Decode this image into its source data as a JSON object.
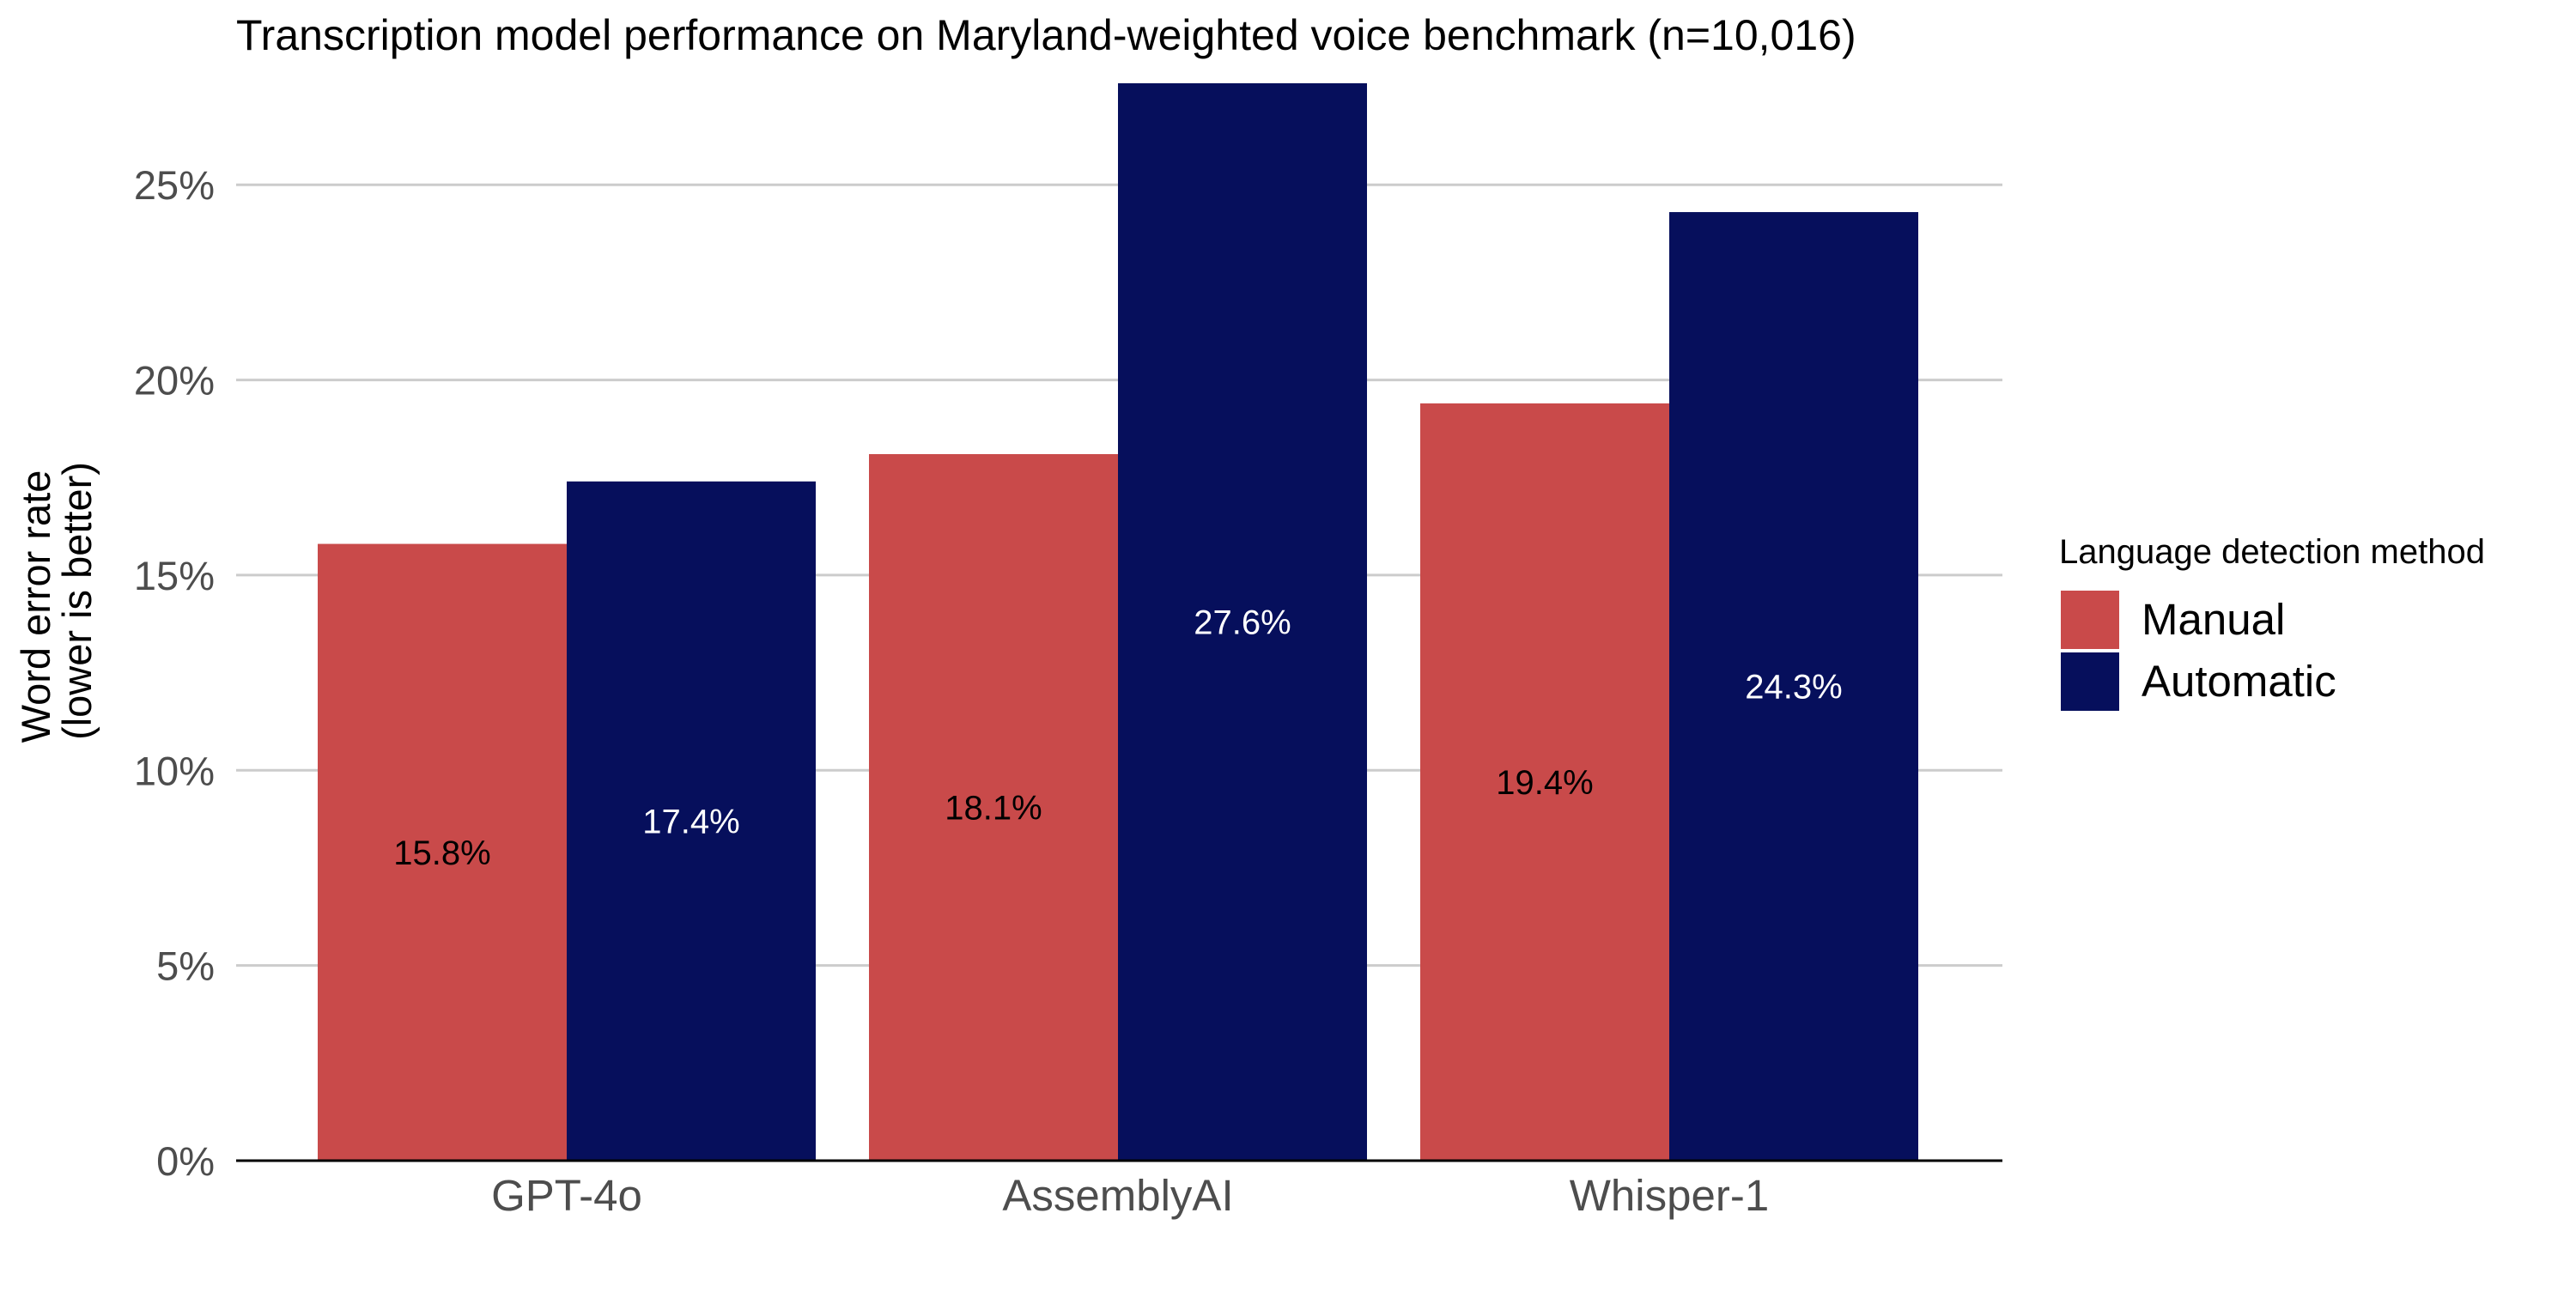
{
  "colors": {
    "manual": "#c94a4a",
    "automatic": "#060f5c",
    "grid": "#cccccc",
    "axis": "#000000",
    "label_on_manual": "#000000",
    "label_on_automatic": "#ffffff"
  },
  "chart_data": {
    "type": "bar",
    "title": "Transcription model performance on Maryland-weighted voice benchmark (n=10,016)",
    "xlabel": "",
    "ylabel_lines": [
      "Word error rate",
      "(lower is better)"
    ],
    "categories": [
      "GPT-4o",
      "AssemblyAI",
      "Whisper-1"
    ],
    "series": [
      {
        "name": "Manual",
        "values": [
          15.8,
          18.1,
          19.4
        ],
        "labels": [
          "15.8%",
          "18.1%",
          "19.4%"
        ]
      },
      {
        "name": "Automatic",
        "values": [
          17.4,
          27.6,
          24.3
        ],
        "labels": [
          "17.4%",
          "27.6%",
          "24.3%"
        ]
      }
    ],
    "ylim": [
      0,
      27.6
    ],
    "yticks": [
      0,
      5,
      10,
      15,
      20,
      25
    ],
    "ytick_labels": [
      "0%",
      "5%",
      "10%",
      "15%",
      "20%",
      "25%"
    ],
    "grid": true,
    "legend": {
      "title": "Language detection method",
      "position": "right",
      "entries": [
        "Manual",
        "Automatic"
      ]
    }
  }
}
